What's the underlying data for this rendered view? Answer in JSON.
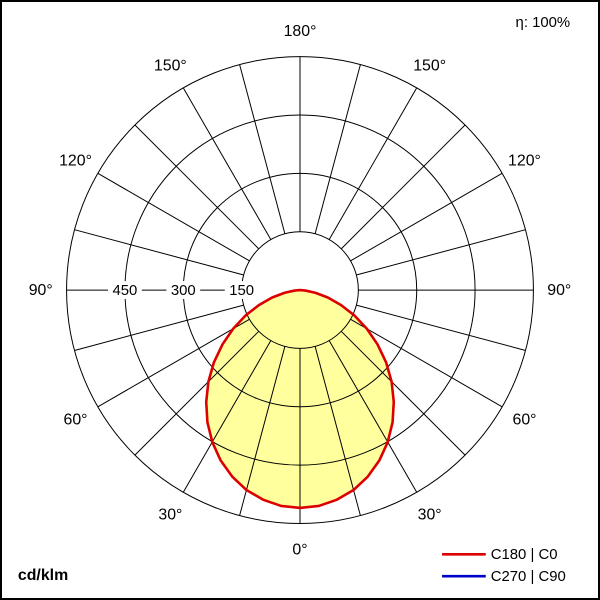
{
  "page": {
    "unit_label": "cd/klm",
    "efficiency_label": "η: 100%"
  },
  "legend": [
    {
      "label": "C180 | C0",
      "color": "#dd0000"
    },
    {
      "label": "C270 | C90",
      "color": "#0000cc"
    }
  ],
  "chart_data": {
    "type": "polar",
    "subtype": "luminous-intensity-distribution",
    "title": "",
    "r_axis": {
      "min": 0,
      "max": 600,
      "tick_step": 150,
      "unit": "cd/klm"
    },
    "grid": {
      "ring_values": [
        150,
        300,
        450,
        600
      ],
      "ring_tick_labels": [
        "150",
        "300",
        "450"
      ],
      "spoke_step_deg": 15,
      "angle_tick_labels": [
        {
          "angle": 0,
          "label": "0°"
        },
        {
          "angle": 30,
          "label": "30°"
        },
        {
          "angle": 60,
          "label": "60°"
        },
        {
          "angle": 90,
          "label": "90°"
        },
        {
          "angle": 120,
          "label": "120°"
        },
        {
          "angle": 150,
          "label": "150°"
        },
        {
          "angle": 180,
          "label": "180°"
        }
      ],
      "grid_color": "#000000"
    },
    "series": [
      {
        "name": "C180 | C0",
        "color": "#dd0000",
        "fill": "#ffff9e",
        "symmetric": true,
        "angles": [
          0,
          5,
          10,
          15,
          20,
          25,
          30,
          35,
          40,
          45,
          50,
          55,
          60,
          65,
          70,
          75,
          80,
          85,
          90
        ],
        "values": [
          560,
          557,
          547,
          532,
          510,
          483,
          451,
          415,
          375,
          333,
          289,
          243,
          198,
          154,
          112,
          74,
          40,
          14,
          0
        ]
      }
    ],
    "legend_position": "bottom-right"
  }
}
